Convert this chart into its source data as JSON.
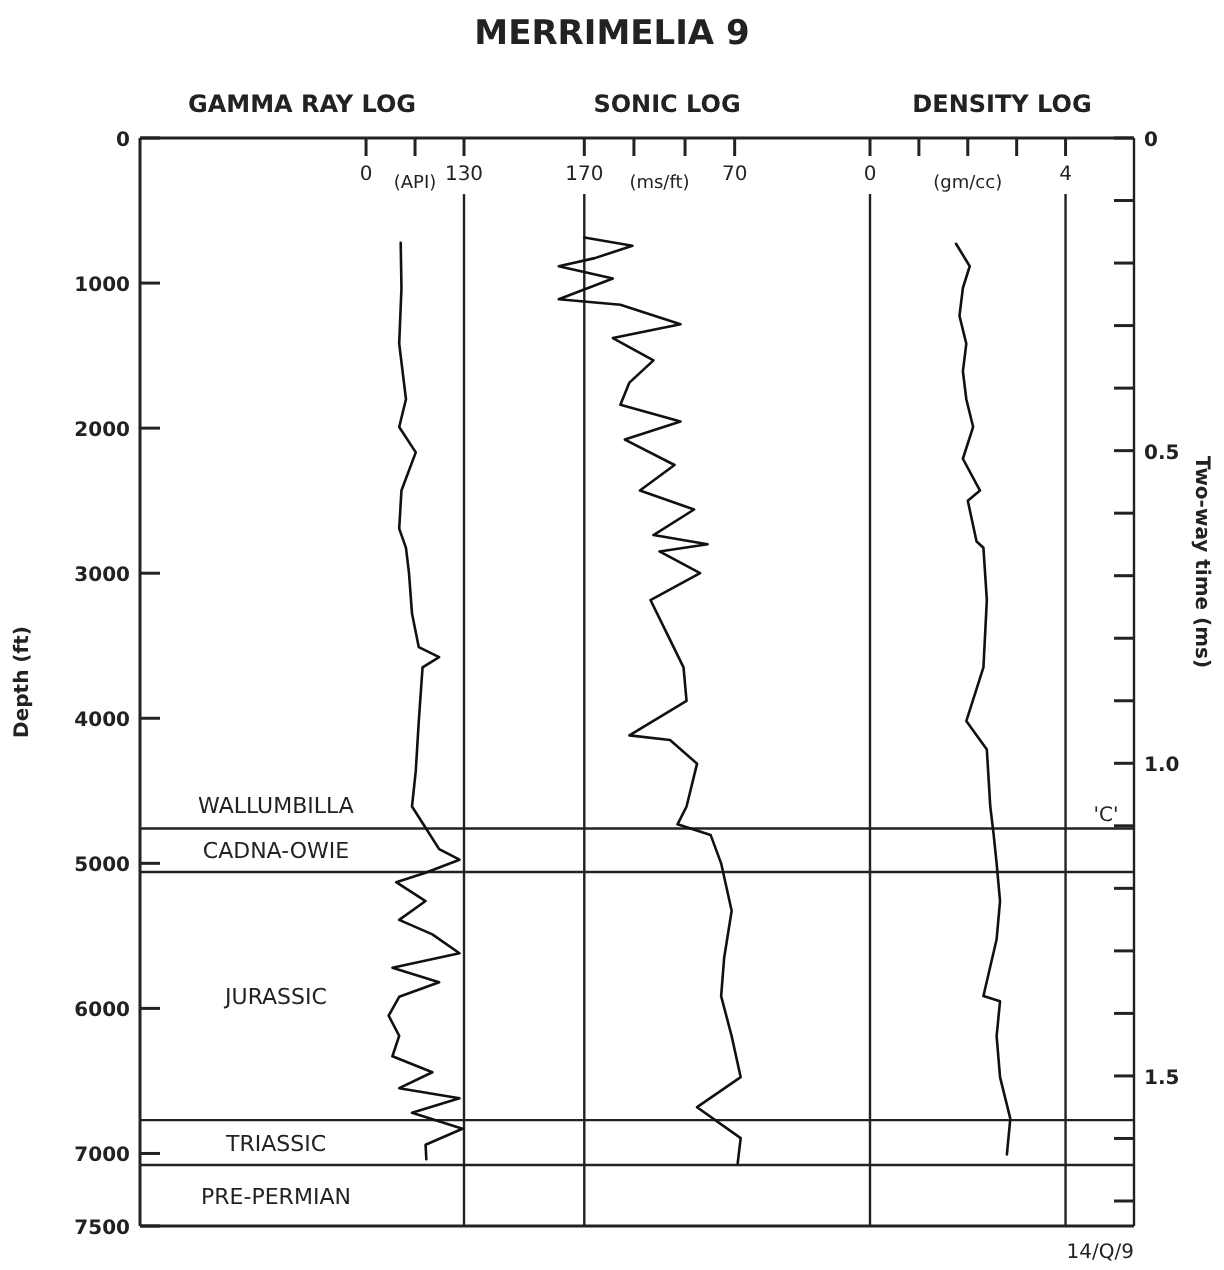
{
  "chart_data": [
    {
      "type": "line",
      "title": "GAMMA RAY LOG",
      "xlabel": "(API)",
      "ylabel": "Depth (ft)",
      "xlim": [
        -300,
        130
      ],
      "xticks": [
        0,
        {
          "value": 65,
          "label": null
        },
        130
      ],
      "ylim": [
        7500,
        0
      ],
      "yticks": [
        0,
        1000,
        2000,
        3000,
        4000,
        5000,
        6000,
        7000,
        7500
      ],
      "series": [
        {
          "color": "#111111",
          "x": [
            46,
            47,
            44,
            53,
            44,
            66,
            47,
            44,
            53,
            57,
            61,
            70,
            97,
            75,
            70,
            66,
            61,
            79,
            97,
            124,
            79,
            40,
            79,
            44,
            88,
            124,
            35,
            97,
            44,
            30,
            44,
            35,
            88,
            44,
            124,
            61,
            128,
            79,
            80
          ],
          "values": [
            723,
            1034,
            1418,
            1801,
            1992,
            2167,
            2430,
            2693,
            2825,
            3000,
            3278,
            3510,
            3579,
            3649,
            4019,
            4363,
            4608,
            4755,
            4902,
            4975,
            5065,
            5130,
            5260,
            5390,
            5490,
            5620,
            5720,
            5820,
            5920,
            6050,
            6190,
            6330,
            6440,
            6550,
            6620,
            6720,
            6830,
            6940,
            7040
          ]
        }
      ],
      "ref_lines": [
        {
          "axis": "y",
          "value": 4760
        },
        {
          "axis": "y",
          "value": 5060
        },
        {
          "axis": "y",
          "value": 6770
        },
        {
          "axis": "y",
          "value": 7080
        }
      ],
      "annotations": [
        "WALLUMBILLA",
        "CADNA-OWIE",
        "JURASSIC",
        "TRIASSIC",
        "PRE-PERMIAN"
      ]
    },
    {
      "type": "line",
      "title": "MERRIMELIA 9",
      "subtitle": "SONIC LOG",
      "xlabel": "(ms/ft)",
      "tick_labels": "x",
      "xlim": [
        250,
        -20
      ],
      "xticks": [
        170,
        {
          "value": 137,
          "label": null
        },
        {
          "value": 103,
          "label": null
        },
        70
      ],
      "ylim": [
        7500,
        0
      ],
      "series": [
        {
          "color": "#111111",
          "x": [
            170,
            138,
            163,
            187,
            151,
            187,
            146,
            106,
            151,
            124,
            140,
            146,
            106,
            143,
            110,
            133,
            97,
            124,
            88,
            120,
            93,
            126,
            115,
            104,
            102,
            140,
            113,
            95,
            102,
            108,
            86,
            79,
            72,
            77,
            79,
            72,
            66,
            95,
            66,
            68
          ],
          "values": [
            686,
            743,
            828,
            884,
            969,
            1111,
            1149,
            1284,
            1379,
            1533,
            1686,
            1839,
            1954,
            2079,
            2254,
            2430,
            2561,
            2737,
            2800,
            2850,
            3000,
            3185,
            3417,
            3649,
            3880,
            4118,
            4150,
            4313,
            4608,
            4731,
            4804,
            5000,
            5327,
            5653,
            5915,
            6191,
            6474,
            6681,
            6894,
            7068
          ]
        }
      ],
      "ref_lines": [
        {
          "axis": "x",
          "value": 170
        },
        {
          "axis": "y",
          "value": 4760
        },
        {
          "axis": "y",
          "value": 5060
        },
        {
          "axis": "y",
          "value": 6770
        },
        {
          "axis": "y",
          "value": 7080
        }
      ]
    },
    {
      "type": "line",
      "title": "DENSITY LOG",
      "xlabel": "(gm/cc)",
      "y2label": "Two-way time (ms)",
      "xlim": [
        0,
        5.4
      ],
      "xticks": [
        0,
        {
          "value": 1,
          "label": null
        },
        {
          "value": 2,
          "label": null
        },
        {
          "value": 3,
          "label": null
        },
        4
      ],
      "ylim": [
        7500,
        0
      ],
      "y2lim": [
        1.74,
        0
      ],
      "y2ticks": [
        0,
        {
          "value": 0.1,
          "label": null
        },
        {
          "value": 0.2,
          "label": null
        },
        {
          "value": 0.3,
          "label": null
        },
        {
          "value": 0.4,
          "label": null
        },
        0.5,
        {
          "value": 0.6,
          "label": null
        },
        {
          "value": 0.7,
          "label": null
        },
        {
          "value": 0.8,
          "label": null
        },
        {
          "value": 0.9,
          "label": null
        },
        {
          "value": 1,
          "label": "1.0"
        },
        {
          "value": 1.1,
          "label": null
        },
        {
          "value": 1.2,
          "label": null
        },
        {
          "value": 1.3,
          "label": null
        },
        {
          "value": 1.4,
          "label": null
        },
        1.5,
        {
          "value": 1.6,
          "label": null
        },
        {
          "value": 1.7,
          "label": null
        }
      ],
      "series": [
        {
          "color": "#111111",
          "x": [
            1.76,
            2.04,
            1.9,
            1.83,
            1.97,
            1.9,
            1.97,
            2.11,
            1.9,
            2.25,
            2.0,
            2.18,
            2.32,
            2.39,
            2.32,
            1.97,
            2.39,
            2.46,
            2.53,
            2.59,
            2.66,
            2.59,
            2.32,
            2.66,
            2.59,
            2.66,
            2.87,
            2.8
          ],
          "values": [
            729,
            884,
            1034,
            1226,
            1418,
            1609,
            1801,
            1992,
            2211,
            2430,
            2500,
            2781,
            2825,
            3185,
            3649,
            4019,
            4216,
            4608,
            4804,
            5000,
            5261,
            5523,
            5915,
            5950,
            6191,
            6474,
            6760,
            7006
          ]
        }
      ],
      "ref_lines": [
        {
          "axis": "x",
          "value": 4
        },
        {
          "axis": "y",
          "value": 4760,
          "label": "'C'"
        },
        {
          "axis": "y",
          "value": 5060
        },
        {
          "axis": "y",
          "value": 6770
        },
        {
          "axis": "y",
          "value": 7080
        }
      ],
      "annotations": [
        "14/Q/9"
      ]
    }
  ]
}
